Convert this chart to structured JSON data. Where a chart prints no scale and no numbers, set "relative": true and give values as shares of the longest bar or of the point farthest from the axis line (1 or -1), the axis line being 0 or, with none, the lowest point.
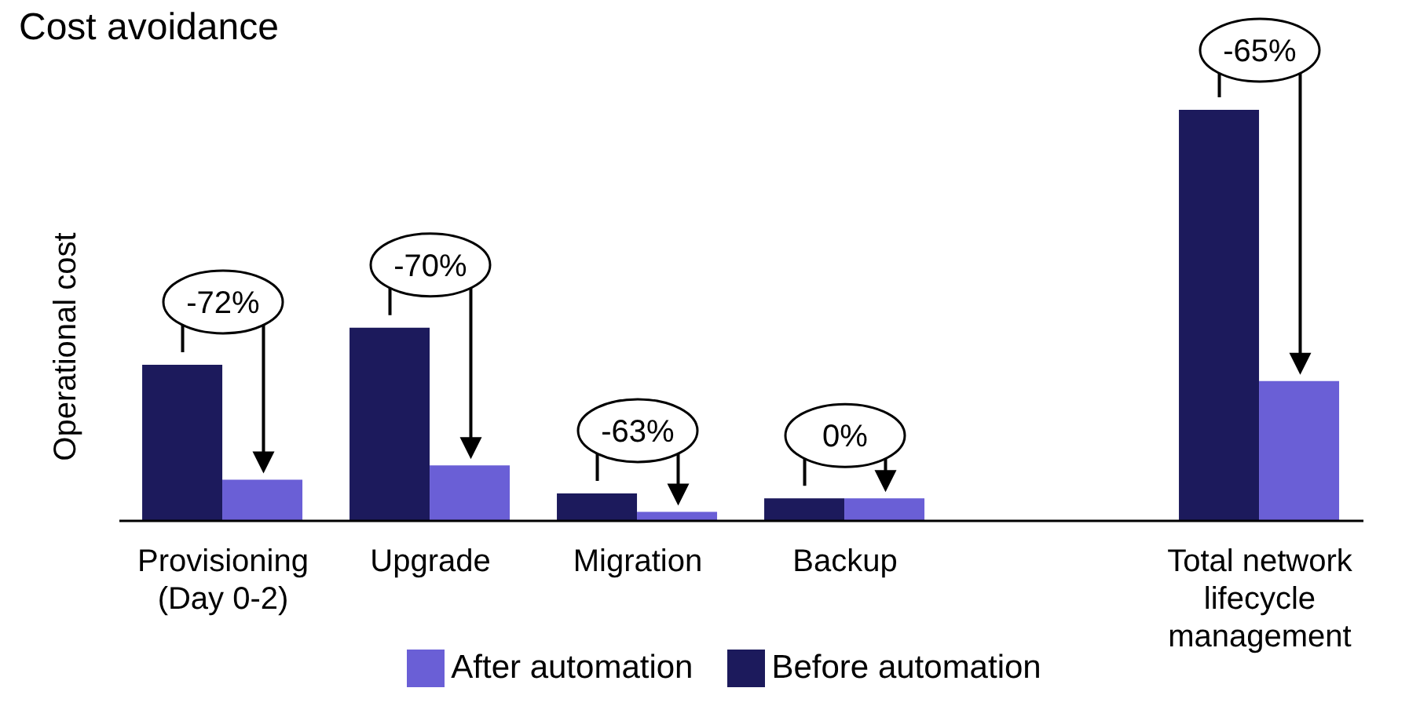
{
  "chart_data": {
    "type": "bar",
    "title": "Cost avoidance",
    "ylabel": "Operational cost",
    "relative": true,
    "categories": [
      "Provisioning (Day 0-2)",
      "Upgrade",
      "Migration",
      "Backup",
      null,
      "Total network lifecycle management"
    ],
    "series": [
      {
        "name": "Before automation",
        "color": "#1c1a5c",
        "values": [
          0.38,
          0.47,
          0.067,
          0.055,
          null,
          1
        ]
      },
      {
        "name": "After automation",
        "color": "#6a5fd6",
        "values": [
          0.1,
          0.135,
          0.022,
          0.055,
          null,
          0.34
        ]
      }
    ],
    "annotations": [
      "-72%",
      "-70%",
      "-63%",
      "0%",
      "-65%"
    ],
    "legend": "bottom",
    "grid": false
  }
}
